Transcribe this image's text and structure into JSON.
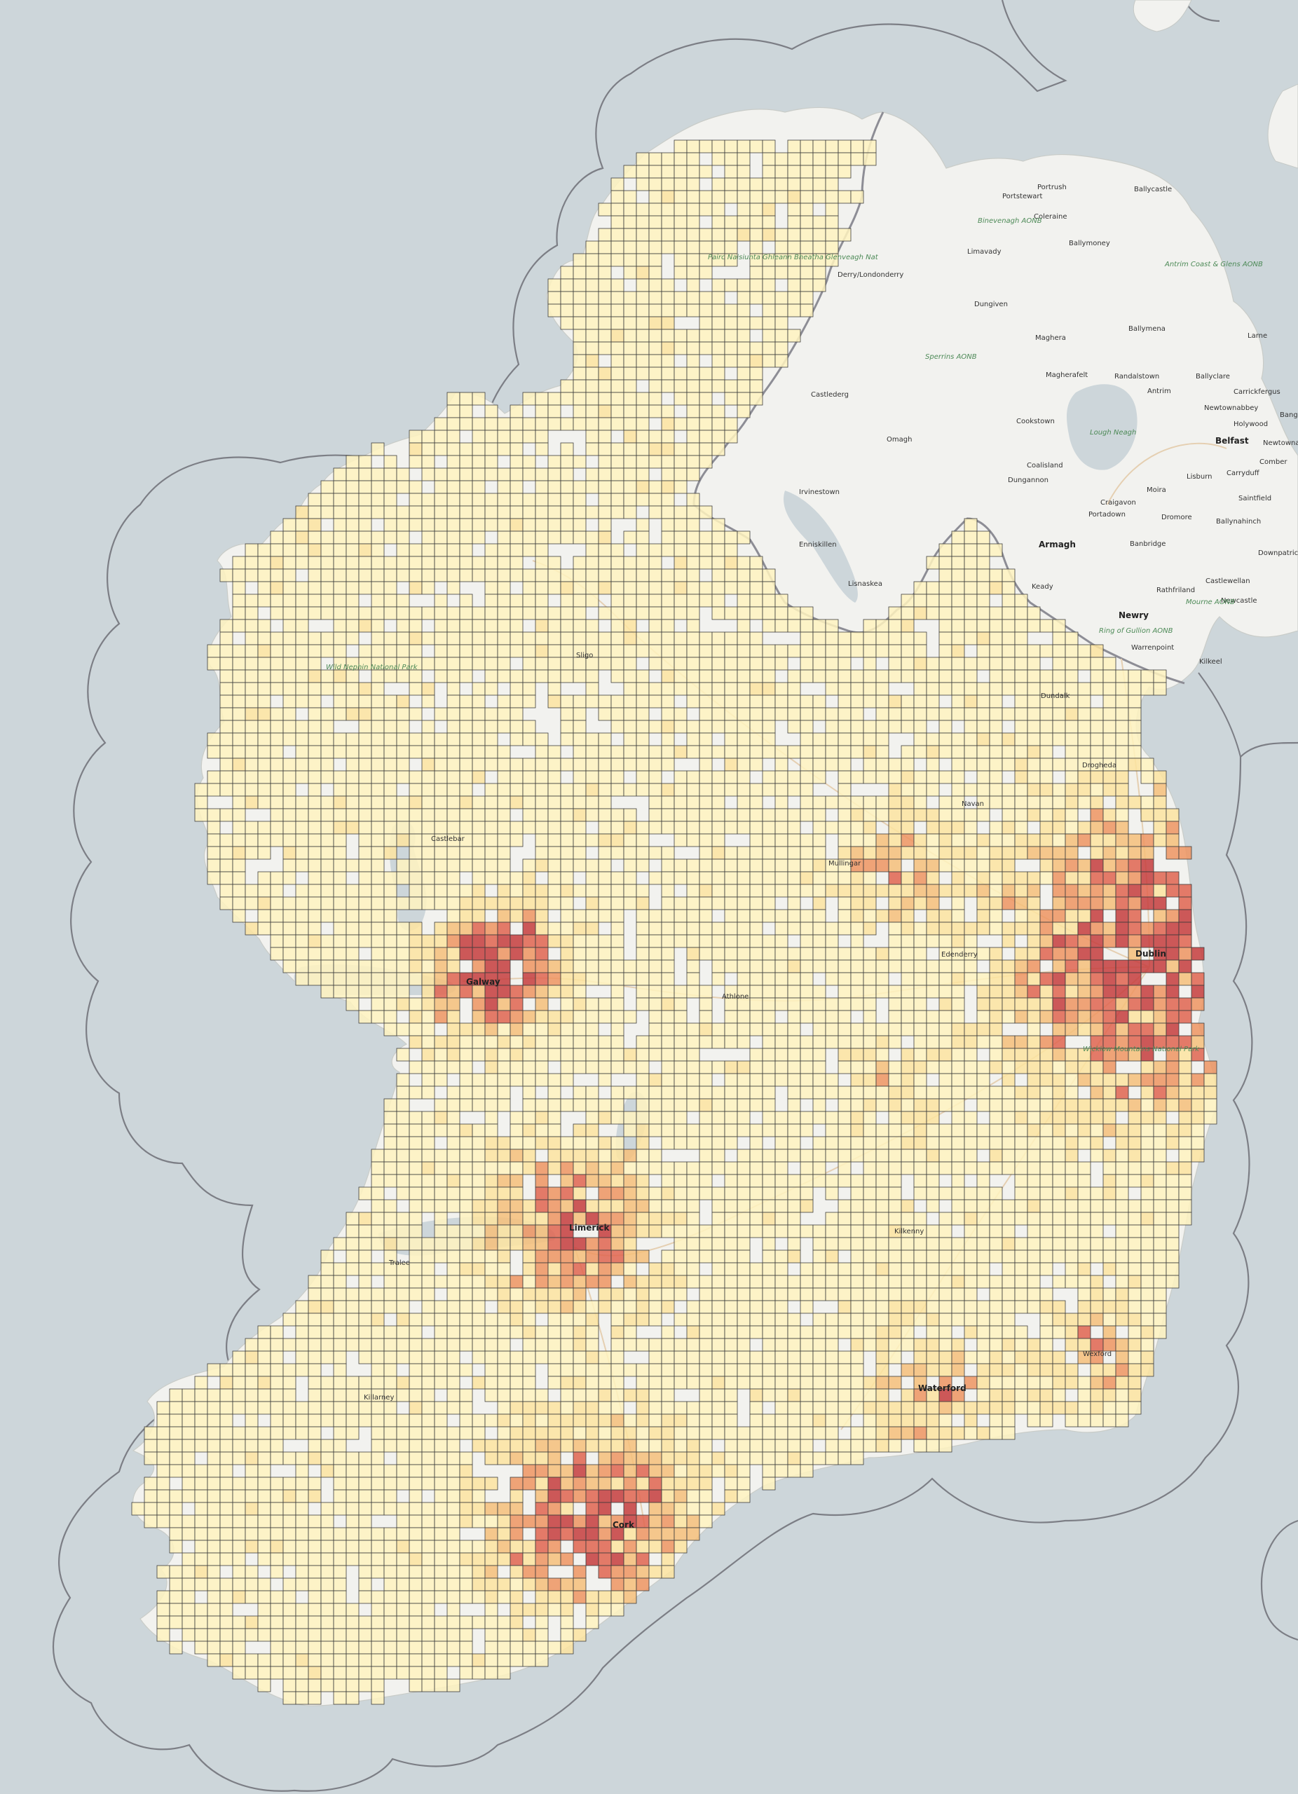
{
  "map": {
    "legend_colors": {
      "low": "#fff3c0",
      "mid_low": "#fde4a0",
      "mid": "#f6c07a",
      "mid_high": "#ef9562",
      "high": "#e06550",
      "highest": "#c63d3d"
    },
    "sea_color": "#cdd6da",
    "land_color": "#f2f2ef",
    "boundary_color": "#8d8d95",
    "places": {
      "portrush": "Portrush",
      "ballycastle": "Ballycastle",
      "portstewart": "Portstewart",
      "coleraine": "Coleraine",
      "binevenagh": "Binevenagh AONB",
      "ballymoney": "Ballymoney",
      "limavady": "Limavady",
      "antrim_aonb": "Antrim Coast & Glens AONB",
      "derry": "Derry/Londonderry",
      "dungiven": "Dungiven",
      "ballymena": "Ballymena",
      "larne": "Larne",
      "sperrins": "Sperrins AONB",
      "maghera": "Maghera",
      "magherafelt": "Magherafelt",
      "randalstown": "Randalstown",
      "ballyclare": "Ballyclare",
      "carrickfergus": "Carrickfergus",
      "antrim": "Antrim",
      "newtownabbey": "Newtownabbey",
      "bangor": "Bang",
      "castlederg": "Castlederg",
      "cookstown": "Cookstown",
      "lough_neagh": "Lough Neagh",
      "holywood": "Holywood",
      "omagh": "Omagh",
      "belfast": "Belfast",
      "newtownards": "Newtowna",
      "comber": "Comber",
      "coalisland": "Coalisland",
      "lisburn": "Lisburn",
      "carryduff": "Carryduff",
      "irvinestown": "Irvinestown",
      "dungannon": "Dungannon",
      "moira": "Moira",
      "saintfield": "Saintfield",
      "craigavon": "Craigavon",
      "portadown": "Portadown",
      "dromore": "Dromore",
      "ballynahinch": "Ballynahinch",
      "armagh": "Armagh",
      "banbridge": "Banbridge",
      "downpatrick": "Downpatrick",
      "enniskillen": "Enniskillen",
      "lisnaskea": "Lisnaskea",
      "keady": "Keady",
      "rathfriland": "Rathfriland",
      "castlewellan": "Castlewellan",
      "newcastle": "Newcastle",
      "mourne_aonb": "Mourne AONB",
      "ring_of_gullion": "Ring of Gullion AONB",
      "newry": "Newry",
      "warrenpoint": "Warrenpoint",
      "kilkeel": "Kilkeel",
      "castlebar": "Castlebar",
      "galway": "Galway",
      "limerick": "Limerick",
      "cork": "Cork",
      "dublin": "Dublin",
      "kilkenny": "Kilkenny",
      "wild_nephin": "Wild Nephin National Park",
      "wicklow_mountains": "Wicklow Mountains National Park",
      "glenveagh": "Pairc Naisiunta Ghleann Bheatha Glenveagh Nat",
      "edenderry": "Edenderry",
      "tralee": "Tralee",
      "killarney": "Killarney",
      "athlone": "Athlone",
      "mullingar": "Mullingar",
      "sligo": "Sligo",
      "waterford": "Waterford",
      "wexford": "Wexford",
      "navan": "Navan",
      "dundalk": "Dundalk",
      "drogheda": "Drogheda"
    }
  }
}
